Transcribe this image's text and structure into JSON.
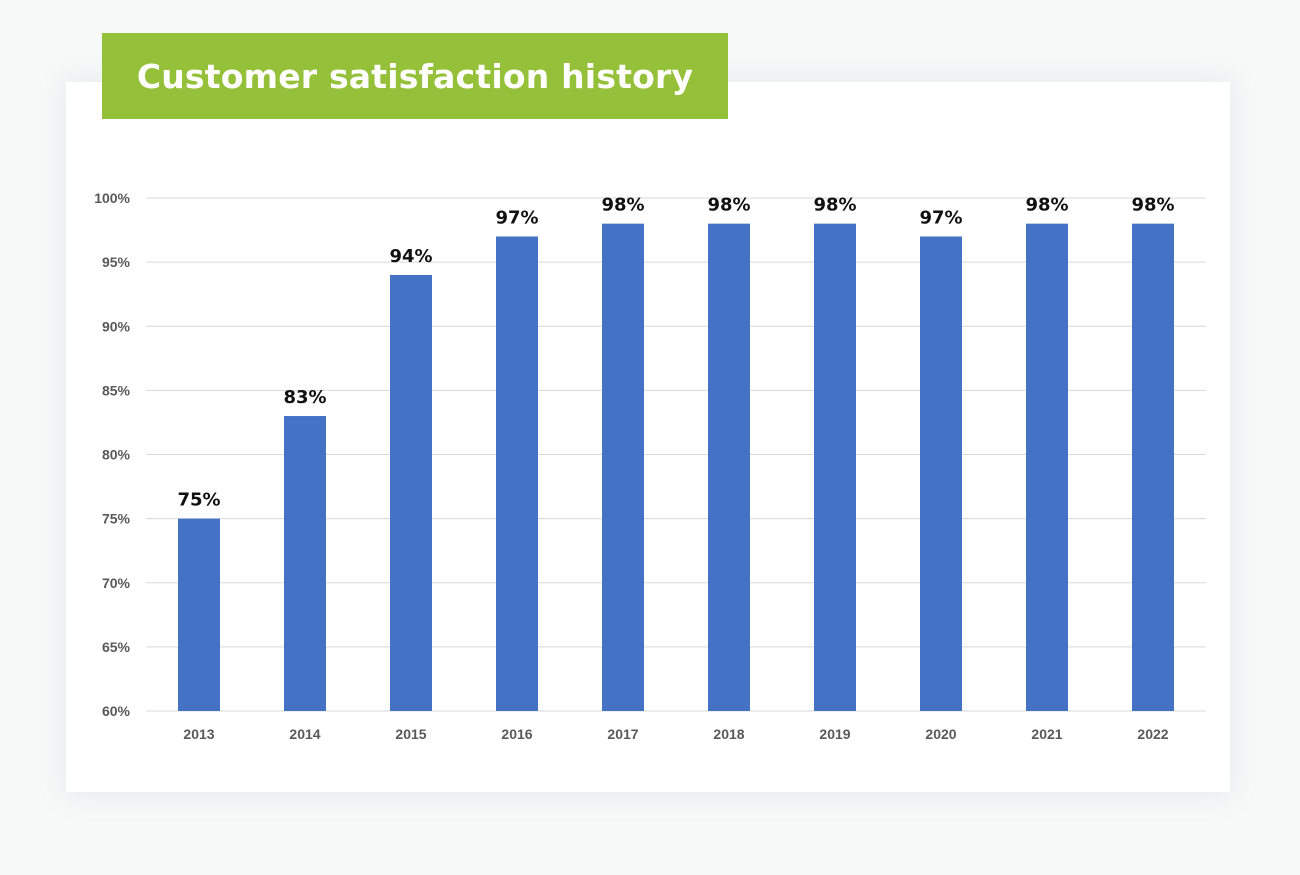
{
  "title": "Customer satisfaction history",
  "colors": {
    "banner": "#95c13a",
    "bar": "#4472c4",
    "grid": "#d9d9d9",
    "background": "#f7f8f8",
    "card": "#ffffff"
  },
  "chart_data": {
    "type": "bar",
    "title": "Customer satisfaction history",
    "xlabel": "",
    "ylabel": "",
    "categories": [
      "2013",
      "2014",
      "2015",
      "2016",
      "2017",
      "2018",
      "2019",
      "2020",
      "2021",
      "2022"
    ],
    "values": [
      75,
      83,
      94,
      97,
      98,
      98,
      98,
      97,
      98,
      98
    ],
    "data_labels": [
      "75%",
      "83%",
      "94%",
      "97%",
      "98%",
      "98%",
      "98%",
      "97%",
      "98%",
      "98%"
    ],
    "ylim": [
      60,
      100
    ],
    "yticks": [
      60,
      65,
      70,
      75,
      80,
      85,
      90,
      95,
      100
    ],
    "ytick_labels": [
      "60%",
      "65%",
      "70%",
      "75%",
      "80%",
      "85%",
      "90%",
      "95%",
      "100%"
    ],
    "grid": true,
    "legend": "none"
  }
}
